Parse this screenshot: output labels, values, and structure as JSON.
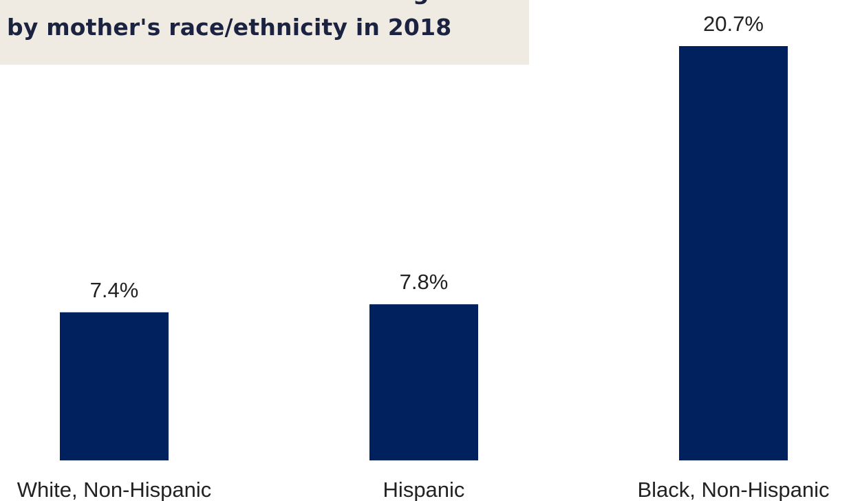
{
  "title": {
    "line1_partial": "g",
    "line2": "by mother's race/ethnicity in 2018"
  },
  "colors": {
    "bar": "#00205e",
    "title_background": "#f0ebe2",
    "title_text": "#1b2340"
  },
  "chart_data": {
    "type": "bar",
    "categories": [
      "White, Non-Hispanic",
      "Hispanic",
      "Black, Non-Hispanic"
    ],
    "values": [
      7.4,
      7.8,
      20.7
    ],
    "data_labels": [
      "7.4%",
      "7.8%",
      "20.7%"
    ],
    "title": "by mother's race/ethnicity in 2018",
    "xlabel": "",
    "ylabel": "",
    "unit": "%",
    "ylim": [
      0,
      20.7
    ],
    "grid": false,
    "legend": "none"
  }
}
